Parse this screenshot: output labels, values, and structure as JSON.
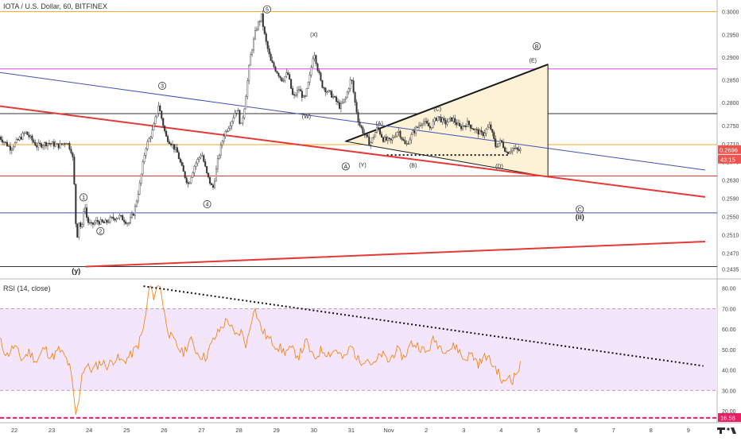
{
  "header": {
    "symbol": "IOTA / U.S. Dollar, 60, BITFINEX",
    "rsi_title": "RSI (14, close)"
  },
  "chart_data": [
    {
      "type": "candlestick",
      "symbol": "IOTA / U.S. Dollar",
      "interval": "60",
      "exchange": "BITFINEX",
      "ylim": [
        0.242,
        0.3015
      ],
      "price_ticks": [
        "0.3000",
        "0.2950",
        "0.2900",
        "0.2850",
        "0.2800",
        "0.2750",
        "0.2710",
        "0.2670",
        "0.2630",
        "0.2590",
        "0.2550",
        "0.2510",
        "0.2470",
        "0.2435"
      ],
      "last_price": "0.2696",
      "countdown": "43:15",
      "x_labels": [
        {
          "label": "22",
          "d": 0
        },
        {
          "label": "23",
          "d": 1
        },
        {
          "label": "24",
          "d": 2
        },
        {
          "label": "25",
          "d": 3
        },
        {
          "label": "26",
          "d": 4
        },
        {
          "label": "27",
          "d": 5
        },
        {
          "label": "28",
          "d": 6
        },
        {
          "label": "29",
          "d": 7
        },
        {
          "label": "30",
          "d": 8
        },
        {
          "label": "31",
          "d": 9
        },
        {
          "label": "Nov",
          "d": 10
        },
        {
          "label": "2",
          "d": 11
        },
        {
          "label": "3",
          "d": 12
        },
        {
          "label": "4",
          "d": 13
        },
        {
          "label": "5",
          "d": 14
        },
        {
          "label": "6",
          "d": 15
        },
        {
          "label": "7",
          "d": 16
        },
        {
          "label": "8",
          "d": 17
        },
        {
          "label": "9",
          "d": 18
        }
      ],
      "price_path": [
        [
          -0.4,
          0.2725
        ],
        [
          -0.1,
          0.27
        ],
        [
          0.3,
          0.2735
        ],
        [
          0.6,
          0.2705
        ],
        [
          0.9,
          0.2712
        ],
        [
          1.2,
          0.2705
        ],
        [
          1.4,
          0.2715
        ],
        [
          1.55,
          0.269
        ],
        [
          1.62,
          0.259
        ],
        [
          1.66,
          0.249
        ],
        [
          1.72,
          0.254
        ],
        [
          1.8,
          0.252
        ],
        [
          1.85,
          0.2565
        ],
        [
          1.88,
          0.2575
        ],
        [
          1.95,
          0.254
        ],
        [
          2.05,
          0.253
        ],
        [
          2.2,
          0.254
        ],
        [
          2.4,
          0.2535
        ],
        [
          2.6,
          0.2545
        ],
        [
          2.8,
          0.255
        ],
        [
          2.9,
          0.2545
        ],
        [
          3.05,
          0.2535
        ],
        [
          3.2,
          0.256
        ],
        [
          3.35,
          0.262
        ],
        [
          3.5,
          0.27
        ],
        [
          3.7,
          0.274
        ],
        [
          3.85,
          0.2795
        ],
        [
          3.95,
          0.276
        ],
        [
          4.05,
          0.2725
        ],
        [
          4.2,
          0.271
        ],
        [
          4.35,
          0.269
        ],
        [
          4.5,
          0.265
        ],
        [
          4.65,
          0.262
        ],
        [
          4.8,
          0.266
        ],
        [
          5.0,
          0.269
        ],
        [
          5.15,
          0.264
        ],
        [
          5.3,
          0.261
        ],
        [
          5.45,
          0.268
        ],
        [
          5.6,
          0.273
        ],
        [
          5.8,
          0.276
        ],
        [
          5.95,
          0.279
        ],
        [
          6.05,
          0.2745
        ],
        [
          6.15,
          0.2795
        ],
        [
          6.3,
          0.29
        ],
        [
          6.45,
          0.296
        ],
        [
          6.6,
          0.299
        ],
        [
          6.7,
          0.294
        ],
        [
          6.85,
          0.289
        ],
        [
          7.0,
          0.287
        ],
        [
          7.15,
          0.285
        ],
        [
          7.3,
          0.2865
        ],
        [
          7.45,
          0.281
        ],
        [
          7.6,
          0.283
        ],
        [
          7.75,
          0.2805
        ],
        [
          7.9,
          0.286
        ],
        [
          8.0,
          0.2915
        ],
        [
          8.1,
          0.2875
        ],
        [
          8.2,
          0.284
        ],
        [
          8.35,
          0.2825
        ],
        [
          8.5,
          0.2815
        ],
        [
          8.7,
          0.279
        ],
        [
          8.85,
          0.281
        ],
        [
          9.0,
          0.2855
        ],
        [
          9.1,
          0.28
        ],
        [
          9.2,
          0.2755
        ],
        [
          9.35,
          0.273
        ],
        [
          9.5,
          0.271
        ],
        [
          9.7,
          0.2745
        ],
        [
          9.85,
          0.272
        ],
        [
          10.05,
          0.2715
        ],
        [
          10.25,
          0.274
        ],
        [
          10.45,
          0.2705
        ],
        [
          10.65,
          0.2735
        ],
        [
          10.9,
          0.276
        ],
        [
          11.1,
          0.2745
        ],
        [
          11.3,
          0.277
        ],
        [
          11.5,
          0.2755
        ],
        [
          11.7,
          0.2765
        ],
        [
          11.9,
          0.2745
        ],
        [
          12.1,
          0.2755
        ],
        [
          12.3,
          0.274
        ],
        [
          12.5,
          0.273
        ],
        [
          12.7,
          0.275
        ],
        [
          12.85,
          0.2705
        ],
        [
          13.0,
          0.2715
        ],
        [
          13.15,
          0.269
        ],
        [
          13.3,
          0.27
        ],
        [
          13.45,
          0.2695
        ],
        [
          13.55,
          0.2696
        ]
      ],
      "horizontal_levels": [
        {
          "value": 0.3,
          "color": "#f5a623"
        },
        {
          "value": 0.2874,
          "color": "#e040fb"
        },
        {
          "value": 0.2776,
          "color": "#333333"
        },
        {
          "value": 0.2708,
          "color": "#f5a623"
        },
        {
          "value": 0.2639,
          "color": "#e53935"
        },
        {
          "value": 0.2558,
          "color": "#3f51b5"
        },
        {
          "value": 0.244,
          "color": "#333333"
        }
      ],
      "trendlines": [
        {
          "from": [
            -0.45,
            0.2867
          ],
          "to": [
            18.45,
            0.2652
          ],
          "color": "#3f51b5"
        },
        {
          "from": [
            -0.45,
            0.2793
          ],
          "to": [
            18.45,
            0.2593
          ],
          "color": "#e53935"
        },
        {
          "from": [
            1.9,
            0.244
          ],
          "to": [
            18.45,
            0.2495
          ],
          "color": "#e53935"
        }
      ],
      "triangle": {
        "apex": [
          14.25,
          0.2884
        ],
        "low": [
          14.25,
          0.2637
        ],
        "start": [
          8.85,
          0.2715
        ],
        "fill": "#fdf1d6",
        "edge": "#1a1a1a",
        "support_from": [
          9.95,
          0.2685
        ],
        "support_to": [
          13.2,
          0.2685
        ]
      },
      "wave_labels": [
        {
          "text": "5",
          "d": 6.75,
          "v": 0.3005,
          "circled": true
        },
        {
          "text": "(X)",
          "d": 8.0,
          "v": 0.295,
          "circled": false
        },
        {
          "text": "3",
          "d": 3.95,
          "v": 0.2837,
          "circled": true
        },
        {
          "text": "(W)",
          "d": 7.8,
          "v": 0.277,
          "circled": false
        },
        {
          "text": "(A)",
          "d": 9.75,
          "v": 0.2755,
          "circled": false
        },
        {
          "text": "(C)",
          "d": 11.3,
          "v": 0.2787,
          "circled": false
        },
        {
          "text": "B",
          "d": 13.95,
          "v": 0.2924,
          "circled": true
        },
        {
          "text": "(E)",
          "d": 13.85,
          "v": 0.2893,
          "circled": false
        },
        {
          "text": "A",
          "d": 8.85,
          "v": 0.266,
          "circled": true
        },
        {
          "text": "(Y)",
          "d": 9.3,
          "v": 0.2664,
          "circled": false
        },
        {
          "text": "(B)",
          "d": 10.65,
          "v": 0.2663,
          "circled": false
        },
        {
          "text": "(D)",
          "d": 12.95,
          "v": 0.2661,
          "circled": false
        },
        {
          "text": "4",
          "d": 5.15,
          "v": 0.2577,
          "circled": true
        },
        {
          "text": "1",
          "d": 1.85,
          "v": 0.2592,
          "circled": true
        },
        {
          "text": "2",
          "d": 2.3,
          "v": 0.2518,
          "circled": true
        },
        {
          "text": "C",
          "d": 15.1,
          "v": 0.2566,
          "circled": true
        },
        {
          "text": "(ii)",
          "d": 15.1,
          "v": 0.2548,
          "circled": false,
          "bold": true
        },
        {
          "text": "(y)",
          "d": 1.65,
          "v": 0.243,
          "circled": false,
          "bold": true
        }
      ]
    },
    {
      "type": "line",
      "title": "RSI (14, close)",
      "ylim": [
        15,
        83
      ],
      "ticks": [
        "80.00",
        "70.00",
        "60.00",
        "50.00",
        "40.00",
        "30.00",
        "20.00"
      ],
      "band": [
        30,
        70
      ],
      "marked_level": "16.58",
      "values_path": [
        [
          -0.4,
          55
        ],
        [
          -0.2,
          47
        ],
        [
          0.0,
          52
        ],
        [
          0.2,
          45
        ],
        [
          0.4,
          49
        ],
        [
          0.6,
          44
        ],
        [
          0.8,
          51
        ],
        [
          1.0,
          46
        ],
        [
          1.2,
          50
        ],
        [
          1.4,
          45
        ],
        [
          1.5,
          40
        ],
        [
          1.58,
          28
        ],
        [
          1.65,
          17
        ],
        [
          1.72,
          25
        ],
        [
          1.8,
          38
        ],
        [
          1.9,
          42
        ],
        [
          2.1,
          40
        ],
        [
          2.3,
          44
        ],
        [
          2.5,
          42
        ],
        [
          2.7,
          46
        ],
        [
          2.9,
          44
        ],
        [
          3.1,
          47
        ],
        [
          3.3,
          52
        ],
        [
          3.45,
          60
        ],
        [
          3.55,
          72
        ],
        [
          3.62,
          83
        ],
        [
          3.7,
          75
        ],
        [
          3.8,
          80
        ],
        [
          3.9,
          82
        ],
        [
          4.0,
          68
        ],
        [
          4.15,
          57
        ],
        [
          4.3,
          53
        ],
        [
          4.5,
          48
        ],
        [
          4.7,
          55
        ],
        [
          4.9,
          48
        ],
        [
          5.1,
          46
        ],
        [
          5.3,
          54
        ],
        [
          5.5,
          60
        ],
        [
          5.7,
          65
        ],
        [
          5.9,
          56
        ],
        [
          6.05,
          59
        ],
        [
          6.2,
          52
        ],
        [
          6.4,
          71
        ],
        [
          6.6,
          60
        ],
        [
          6.8,
          55
        ],
        [
          7.0,
          52
        ],
        [
          7.2,
          49
        ],
        [
          7.4,
          50
        ],
        [
          7.6,
          47
        ],
        [
          7.8,
          54
        ],
        [
          8.0,
          45
        ],
        [
          8.2,
          50
        ],
        [
          8.4,
          48
        ],
        [
          8.6,
          50
        ],
        [
          8.8,
          45
        ],
        [
          9.0,
          52
        ],
        [
          9.2,
          44
        ],
        [
          9.4,
          46
        ],
        [
          9.6,
          42
        ],
        [
          9.8,
          48
        ],
        [
          10.0,
          44
        ],
        [
          10.2,
          50
        ],
        [
          10.4,
          46
        ],
        [
          10.6,
          53
        ],
        [
          10.8,
          52
        ],
        [
          11.0,
          48
        ],
        [
          11.2,
          55
        ],
        [
          11.4,
          51
        ],
        [
          11.6,
          50
        ],
        [
          11.8,
          52
        ],
        [
          12.0,
          45
        ],
        [
          12.2,
          48
        ],
        [
          12.4,
          43
        ],
        [
          12.6,
          47
        ],
        [
          12.8,
          42
        ],
        [
          12.9,
          40
        ],
        [
          13.0,
          35
        ],
        [
          13.1,
          33
        ],
        [
          13.2,
          38
        ],
        [
          13.3,
          35
        ],
        [
          13.45,
          40
        ],
        [
          13.55,
          43
        ]
      ],
      "trendline": {
        "from": [
          3.45,
          81
        ],
        "to": [
          18.4,
          42
        ]
      }
    }
  ]
}
